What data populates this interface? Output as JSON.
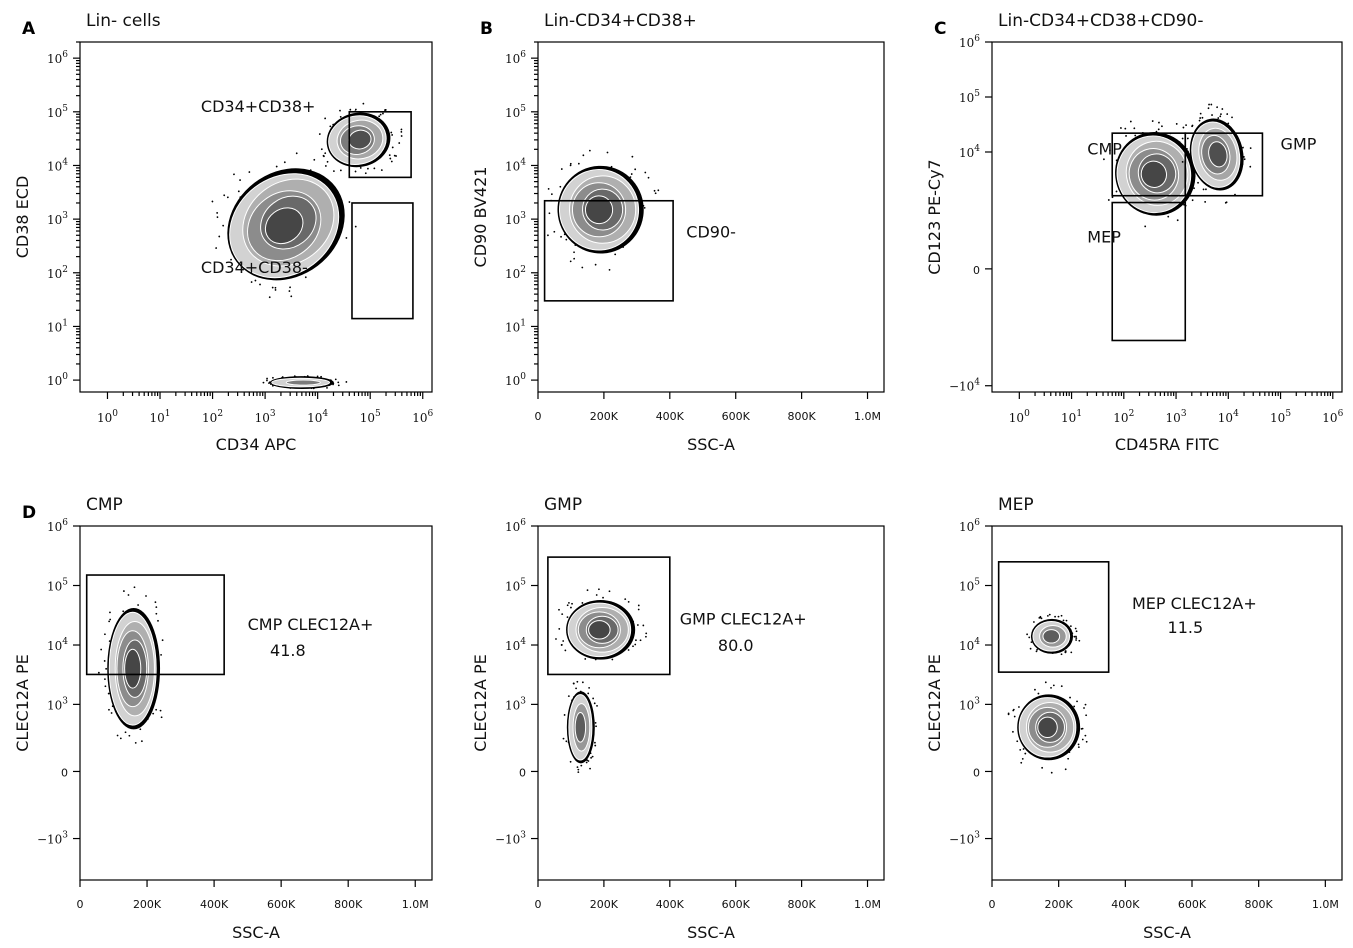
{
  "chart_data": [
    {
      "id": "A",
      "type": "scatter",
      "letter": "A",
      "title": "Lin- cells",
      "xlabel": "CD34 APC",
      "ylabel": "CD38 ECD",
      "x_scale": "log",
      "y_scale": "log",
      "xlim": [
        0.3,
        1500000
      ],
      "ylim": [
        0.6,
        2000000
      ],
      "x_ticks": [
        {
          "v": 1,
          "e": "0"
        },
        {
          "v": 10,
          "e": "1"
        },
        {
          "v": 100,
          "e": "2"
        },
        {
          "v": 1000,
          "e": "3"
        },
        {
          "v": 10000,
          "e": "4"
        },
        {
          "v": 100000,
          "e": "5"
        },
        {
          "v": 1000000,
          "e": "6"
        }
      ],
      "y_ticks": [
        {
          "v": 1,
          "e": "0"
        },
        {
          "v": 10,
          "e": "1"
        },
        {
          "v": 100,
          "e": "2"
        },
        {
          "v": 1000,
          "e": "3"
        },
        {
          "v": 10000,
          "e": "4"
        },
        {
          "v": 100000,
          "e": "5"
        },
        {
          "v": 1000000,
          "e": "6"
        }
      ],
      "blobs": [
        {
          "cx": 2500,
          "cy": 800,
          "sx": 1.1,
          "sy": 0.9,
          "rot": 0.65,
          "n": 5
        },
        {
          "cx": 60000,
          "cy": 30000,
          "sx": 0.55,
          "sy": 0.45,
          "rot": 0.2,
          "n": 4
        },
        {
          "cx": 5000,
          "cy": 0.9,
          "sx": 0.55,
          "sy": 0.08,
          "rot": 0,
          "n": 2
        }
      ],
      "gates": [
        {
          "name": "CD34+CD38+",
          "x1": 40000,
          "x2": 600000,
          "y1": 6000,
          "y2": 100000,
          "label_x": 60,
          "label_y": 100000
        },
        {
          "name": "CD34+CD38-",
          "x1": 45000,
          "x2": 650000,
          "y1": 14,
          "y2": 2000,
          "label_x": 60,
          "label_y": 100
        }
      ],
      "annotations": []
    },
    {
      "id": "B",
      "type": "scatter",
      "letter": "B",
      "title": "Lin-CD34+CD38+",
      "xlabel": "SSC-A",
      "ylabel": "CD90 BV421",
      "x_scale": "linear",
      "y_scale": "log",
      "xlim": [
        0,
        1050000
      ],
      "ylim": [
        0.6,
        2000000
      ],
      "x_ticks": [
        {
          "v": 0,
          "t": "0"
        },
        {
          "v": 200000,
          "t": "200K"
        },
        {
          "v": 400000,
          "t": "400K"
        },
        {
          "v": 600000,
          "t": "600K"
        },
        {
          "v": 800000,
          "t": "800K"
        },
        {
          "v": 1000000,
          "t": "1.0M"
        }
      ],
      "y_ticks": [
        {
          "v": 1,
          "e": "0"
        },
        {
          "v": 10,
          "e": "1"
        },
        {
          "v": 100,
          "e": "2"
        },
        {
          "v": 1000,
          "e": "3"
        },
        {
          "v": 10000,
          "e": "4"
        },
        {
          "v": 100000,
          "e": "5"
        },
        {
          "v": 1000000,
          "e": "6"
        }
      ],
      "blobs": [
        {
          "cx": 190000,
          "cy": 1500,
          "sx": 120000,
          "sy": 0.75,
          "rot": 0.05,
          "n": 5
        }
      ],
      "gates": [
        {
          "name": "CD90-",
          "x1": 20000,
          "x2": 410000,
          "y1": 30,
          "y2": 2200,
          "label_x": 450000,
          "label_y": 450
        }
      ],
      "annotations": []
    },
    {
      "id": "C",
      "type": "scatter",
      "letter": "C",
      "title": "Lin-CD34+CD38+CD90-",
      "xlabel": "CD45RA FITC",
      "ylabel": "CD123 PE-Cy7",
      "x_scale": "log",
      "y_scale": "biex",
      "xlim": [
        0.3,
        1500000
      ],
      "ylim": [
        -13000,
        1000000
      ],
      "x_ticks": [
        {
          "v": 1,
          "e": "0"
        },
        {
          "v": 10,
          "e": "1"
        },
        {
          "v": 100,
          "e": "2"
        },
        {
          "v": 1000,
          "e": "3"
        },
        {
          "v": 10000,
          "e": "4"
        },
        {
          "v": 100000,
          "e": "5"
        },
        {
          "v": 1000000,
          "e": "6"
        }
      ],
      "y_ticks": [
        {
          "v": -10000,
          "t": "-10",
          "e": "4"
        },
        {
          "v": 0,
          "t": "0"
        },
        {
          "v": 10000,
          "t": "10",
          "e": "4"
        },
        {
          "v": 100000,
          "t": "10",
          "e": "5"
        },
        {
          "v": 1000000,
          "t": "10",
          "e": "6"
        }
      ],
      "blobs": [
        {
          "cx": 400,
          "cy": 4000,
          "sx": 0.7,
          "sy": 0.7,
          "rot": 0.3,
          "n": 5
        },
        {
          "cx": 6000,
          "cy": 9000,
          "sx": 0.45,
          "sy": 0.6,
          "rot": 0.2,
          "n": 4
        }
      ],
      "gates": [
        {
          "name": "CMP",
          "x1": 60,
          "x2": 1500,
          "y1": 1600,
          "y2": 22000,
          "label_x": 20,
          "label_y": 9000
        },
        {
          "name": "GMP",
          "x1": 1500,
          "x2": 45000,
          "y1": 1600,
          "y2": 22000,
          "label_x": 100000,
          "label_y": 11000
        },
        {
          "name": "MEP",
          "x1": 60,
          "x2": 1500,
          "y1": -1500,
          "y2": 1200,
          "label_x": 20,
          "label_y": 200
        }
      ],
      "annotations": []
    },
    {
      "id": "D1",
      "type": "scatter",
      "letter": "D",
      "title": "CMP",
      "xlabel": "SSC-A",
      "ylabel": "CLEC12A PE",
      "x_scale": "linear",
      "y_scale": "biex",
      "xlim": [
        0,
        1050000
      ],
      "ylim": [
        -5000,
        1000000
      ],
      "x_ticks": [
        {
          "v": 0,
          "t": "0"
        },
        {
          "v": 200000,
          "t": "200K"
        },
        {
          "v": 400000,
          "t": "400K"
        },
        {
          "v": 600000,
          "t": "600K"
        },
        {
          "v": 800000,
          "t": "800K"
        },
        {
          "v": 1000000,
          "t": "1.0M"
        }
      ],
      "y_ticks": [
        {
          "v": -1000,
          "t": "-10",
          "e": "3"
        },
        {
          "v": 0,
          "t": "0"
        },
        {
          "v": 1000,
          "t": "10",
          "e": "3"
        },
        {
          "v": 10000,
          "t": "10",
          "e": "4"
        },
        {
          "v": 100000,
          "t": "10",
          "e": "5"
        },
        {
          "v": 1000000,
          "t": "10",
          "e": "6"
        }
      ],
      "blobs": [
        {
          "cx": 160000,
          "cy": 4000,
          "sx": 70000,
          "sy": 0.95,
          "rot": 0,
          "n": 5
        }
      ],
      "gates": [
        {
          "name": "CMP CLEC12A+",
          "x1": 20000,
          "x2": 430000,
          "y1": 3200,
          "y2": 150000,
          "label_x": 500000,
          "label_y": 18000
        }
      ],
      "annotations": [
        {
          "text": "41.8",
          "x": 620000,
          "y": 6500
        }
      ]
    },
    {
      "id": "D2",
      "type": "scatter",
      "letter": "",
      "title": "GMP",
      "xlabel": "SSC-A",
      "ylabel": "CLEC12A PE",
      "x_scale": "linear",
      "y_scale": "biex",
      "xlim": [
        0,
        1050000
      ],
      "ylim": [
        -5000,
        1000000
      ],
      "x_ticks": [
        {
          "v": 0,
          "t": "0"
        },
        {
          "v": 200000,
          "t": "200K"
        },
        {
          "v": 400000,
          "t": "400K"
        },
        {
          "v": 600000,
          "t": "600K"
        },
        {
          "v": 800000,
          "t": "800K"
        },
        {
          "v": 1000000,
          "t": "1.0M"
        }
      ],
      "y_ticks": [
        {
          "v": -1000,
          "t": "-10",
          "e": "3"
        },
        {
          "v": 0,
          "t": "0"
        },
        {
          "v": 1000,
          "t": "10",
          "e": "3"
        },
        {
          "v": 10000,
          "t": "10",
          "e": "4"
        },
        {
          "v": 100000,
          "t": "10",
          "e": "5"
        },
        {
          "v": 1000000,
          "t": "10",
          "e": "6"
        }
      ],
      "blobs": [
        {
          "cx": 190000,
          "cy": 18000,
          "sx": 95000,
          "sy": 0.45,
          "rot": 0,
          "n": 5
        },
        {
          "cx": 130000,
          "cy": 400,
          "sx": 35000,
          "sy": 0.55,
          "rot": 0,
          "n": 3
        }
      ],
      "gates": [
        {
          "name": "GMP CLEC12A+",
          "x1": 30000,
          "x2": 400000,
          "y1": 3200,
          "y2": 300000,
          "label_x": 430000,
          "label_y": 22000
        }
      ],
      "annotations": [
        {
          "text": "80.0",
          "x": 600000,
          "y": 8000
        }
      ]
    },
    {
      "id": "D3",
      "type": "scatter",
      "letter": "",
      "title": "MEP",
      "xlabel": "SSC-A",
      "ylabel": "CLEC12A PE",
      "x_scale": "linear",
      "y_scale": "biex",
      "xlim": [
        0,
        1050000
      ],
      "ylim": [
        -5000,
        1000000
      ],
      "x_ticks": [
        {
          "v": 0,
          "t": "0"
        },
        {
          "v": 200000,
          "t": "200K"
        },
        {
          "v": 400000,
          "t": "400K"
        },
        {
          "v": 600000,
          "t": "600K"
        },
        {
          "v": 800000,
          "t": "800K"
        },
        {
          "v": 1000000,
          "t": "1.0M"
        }
      ],
      "y_ticks": [
        {
          "v": -1000,
          "t": "-10",
          "e": "3"
        },
        {
          "v": 0,
          "t": "0"
        },
        {
          "v": 1000,
          "t": "10",
          "e": "3"
        },
        {
          "v": 10000,
          "t": "10",
          "e": "4"
        },
        {
          "v": 100000,
          "t": "10",
          "e": "5"
        },
        {
          "v": 1000000,
          "t": "10",
          "e": "6"
        }
      ],
      "blobs": [
        {
          "cx": 170000,
          "cy": 400,
          "sx": 85000,
          "sy": 0.5,
          "rot": 0,
          "n": 5
        },
        {
          "cx": 180000,
          "cy": 14000,
          "sx": 55000,
          "sy": 0.25,
          "rot": 0,
          "n": 3
        }
      ],
      "gates": [
        {
          "name": "MEP CLEC12A+",
          "x1": 20000,
          "x2": 350000,
          "y1": 3500,
          "y2": 250000,
          "label_x": 420000,
          "label_y": 40000
        }
      ],
      "annotations": [
        {
          "text": "11.5",
          "x": 580000,
          "y": 16000
        }
      ]
    }
  ]
}
